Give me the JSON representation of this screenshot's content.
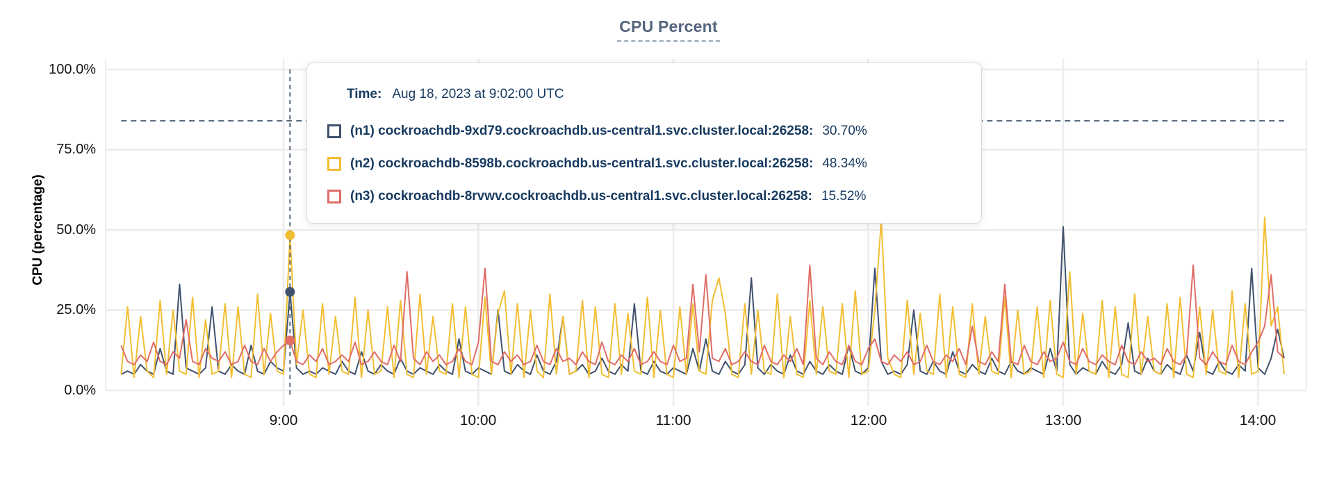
{
  "title": "CPU Percent",
  "y_axis": {
    "label": "CPU (percentage)",
    "ticks": [
      "100.0%",
      "75.0%",
      "50.0%",
      "25.0%",
      "0.0%"
    ],
    "tick_values": [
      100,
      75,
      50,
      25,
      0
    ]
  },
  "x_axis": {
    "ticks": [
      "9:00",
      "10:00",
      "11:00",
      "12:00",
      "13:00",
      "14:00"
    ],
    "tick_hours": [
      9,
      10,
      11,
      12,
      13,
      14
    ]
  },
  "tooltip": {
    "time_label": "Time:",
    "time_value": "Aug 18, 2023 at 9:02:00 UTC",
    "rows": [
      {
        "name": "(n1) cockroachdb-9xd79.cockroachdb.us-central1.svc.cluster.local:26258:",
        "value": "30.70%",
        "color": "#3F516D"
      },
      {
        "name": "(n2) cockroachdb-8598b.cockroachdb.us-central1.svc.cluster.local:26258:",
        "value": "48.34%",
        "color": "#F2BE33"
      },
      {
        "name": "(n3) cockroachdb-8rvwv.cockroachdb.us-central1.svc.cluster.local:26258:",
        "value": "15.52%",
        "color": "#E06C66"
      }
    ]
  },
  "colors": {
    "grid": "#ECECEC",
    "crosshair": "#55687B",
    "threshold": "#55687B",
    "title": "#54657E",
    "tooltip_text": "#16395F"
  },
  "chart_data": {
    "type": "line",
    "title": "CPU Percent",
    "xlabel": "",
    "ylabel": "CPU (percentage)",
    "ylim": [
      0,
      100
    ],
    "x_tick_labels": [
      "9:00",
      "10:00",
      "11:00",
      "12:00",
      "13:00",
      "14:00"
    ],
    "y_tick_labels": [
      "0.0%",
      "25.0%",
      "50.0%",
      "75.0%",
      "100.0%"
    ],
    "grid": true,
    "legend_position": "tooltip-overlay",
    "x_start_hour": 8.1667,
    "x_step_minutes": 2,
    "hover": {
      "time_label": "Aug 18, 2023 at 9:02:00 UTC",
      "time_hour": 9.0333,
      "threshold_percent": 84,
      "points": [
        {
          "series": "n1",
          "value": 30.7
        },
        {
          "series": "n2",
          "value": 48.34
        },
        {
          "series": "n3",
          "value": 15.52
        }
      ]
    },
    "series": [
      {
        "id": "n1",
        "name": "(n1) cockroachdb-9xd79.cockroachdb.us-central1.svc.cluster.local:26258",
        "color": "#3F516D",
        "values": [
          5,
          6,
          5,
          8,
          6,
          5,
          13,
          6,
          5,
          33,
          7,
          6,
          5,
          7,
          26,
          6,
          5,
          8,
          6,
          5,
          14,
          6,
          5,
          9,
          7,
          6,
          30.7,
          7,
          5,
          6,
          5,
          7,
          6,
          5,
          9,
          6,
          5,
          12,
          6,
          5,
          8,
          6,
          5,
          10,
          6,
          5,
          7,
          6,
          5,
          8,
          6,
          5,
          16,
          6,
          5,
          7,
          6,
          5,
          25,
          6,
          5,
          8,
          6,
          5,
          11,
          6,
          5,
          9,
          23,
          5,
          6,
          8,
          5,
          6,
          10,
          6,
          5,
          8,
          6,
          27,
          6,
          5,
          9,
          6,
          5,
          7,
          6,
          5,
          13,
          6,
          16,
          6,
          5,
          9,
          6,
          5,
          8,
          35,
          7,
          5,
          8,
          6,
          5,
          11,
          6,
          5,
          9,
          6,
          5,
          8,
          6,
          5,
          14,
          6,
          5,
          7,
          38,
          9,
          5,
          6,
          5,
          8,
          25,
          6,
          5,
          9,
          6,
          5,
          12,
          6,
          5,
          8,
          6,
          5,
          10,
          6,
          5,
          9,
          6,
          5,
          7,
          6,
          5,
          13,
          6,
          51,
          8,
          5,
          7,
          6,
          5,
          9,
          6,
          5,
          8,
          21,
          6,
          5,
          10,
          6,
          5,
          8,
          6,
          5,
          11,
          6,
          18,
          6,
          5,
          9,
          6,
          5,
          8,
          6,
          38,
          7,
          5,
          10,
          19,
          10
        ]
      },
      {
        "id": "n2",
        "name": "(n2) cockroachdb-8598b.cockroachdb.us-central1.svc.cluster.local:26258",
        "color": "#F2BE33",
        "values": [
          5,
          26,
          4,
          23,
          6,
          4,
          28,
          5,
          25,
          6,
          5,
          29,
          4,
          22,
          5,
          6,
          27,
          4,
          26,
          5,
          4,
          30,
          5,
          24,
          6,
          5,
          48.34,
          8,
          25,
          5,
          4,
          27,
          5,
          23,
          6,
          5,
          29,
          4,
          25,
          5,
          6,
          26,
          4,
          28,
          5,
          4,
          30,
          5,
          23,
          6,
          5,
          27,
          4,
          26,
          5,
          4,
          29,
          5,
          24,
          31,
          5,
          27,
          4,
          25,
          6,
          4,
          30,
          5,
          23,
          5,
          6,
          28,
          4,
          26,
          5,
          4,
          27,
          5,
          24,
          6,
          5,
          29,
          4,
          25,
          5,
          4,
          26,
          5,
          27,
          6,
          5,
          28,
          35,
          24,
          5,
          4,
          27,
          5,
          25,
          6,
          5,
          30,
          4,
          23,
          5,
          4,
          28,
          5,
          26,
          6,
          5,
          27,
          4,
          31,
          5,
          6,
          25,
          53,
          10,
          5,
          4,
          28,
          5,
          24,
          6,
          5,
          30,
          4,
          26,
          5,
          4,
          27,
          5,
          23,
          6,
          5,
          29,
          4,
          25,
          5,
          6,
          26,
          4,
          28,
          5,
          4,
          37,
          5,
          24,
          6,
          5,
          28,
          4,
          26,
          5,
          4,
          30,
          5,
          23,
          6,
          5,
          27,
          4,
          29,
          5,
          4,
          26,
          5,
          25,
          6,
          5,
          31,
          4,
          27,
          5,
          6,
          54,
          20,
          26,
          5
        ]
      },
      {
        "id": "n3",
        "name": "(n3) cockroachdb-8rvwv.cockroachdb.us-central1.svc.cluster.local:26258",
        "color": "#E06C66",
        "values": [
          14,
          9,
          8,
          11,
          9,
          15,
          9,
          8,
          12,
          10,
          22,
          9,
          8,
          13,
          10,
          9,
          12,
          8,
          9,
          14,
          9,
          8,
          13,
          9,
          12,
          14,
          15.52,
          9,
          8,
          11,
          9,
          13,
          8,
          9,
          11,
          9,
          15,
          8,
          9,
          12,
          9,
          8,
          14,
          9,
          37,
          10,
          8,
          12,
          9,
          11,
          8,
          9,
          13,
          9,
          8,
          15,
          38,
          9,
          8,
          12,
          9,
          11,
          8,
          9,
          14,
          9,
          8,
          13,
          9,
          10,
          8,
          12,
          9,
          8,
          15,
          9,
          8,
          11,
          9,
          13,
          8,
          9,
          12,
          9,
          8,
          14,
          9,
          10,
          33,
          12,
          36,
          10,
          9,
          13,
          8,
          9,
          12,
          9,
          8,
          14,
          9,
          8,
          11,
          9,
          13,
          8,
          39,
          10,
          8,
          12,
          9,
          8,
          14,
          9,
          8,
          13,
          16,
          9,
          8,
          11,
          9,
          12,
          8,
          9,
          14,
          9,
          8,
          11,
          9,
          13,
          8,
          20,
          9,
          8,
          12,
          9,
          33,
          9,
          8,
          14,
          9,
          8,
          12,
          9,
          10,
          15,
          9,
          8,
          13,
          9,
          8,
          11,
          9,
          8,
          14,
          9,
          8,
          12,
          9,
          10,
          8,
          13,
          9,
          8,
          11,
          39,
          10,
          8,
          12,
          9,
          8,
          14,
          9,
          8,
          12,
          15,
          20,
          36,
          12,
          10
        ]
      }
    ]
  }
}
